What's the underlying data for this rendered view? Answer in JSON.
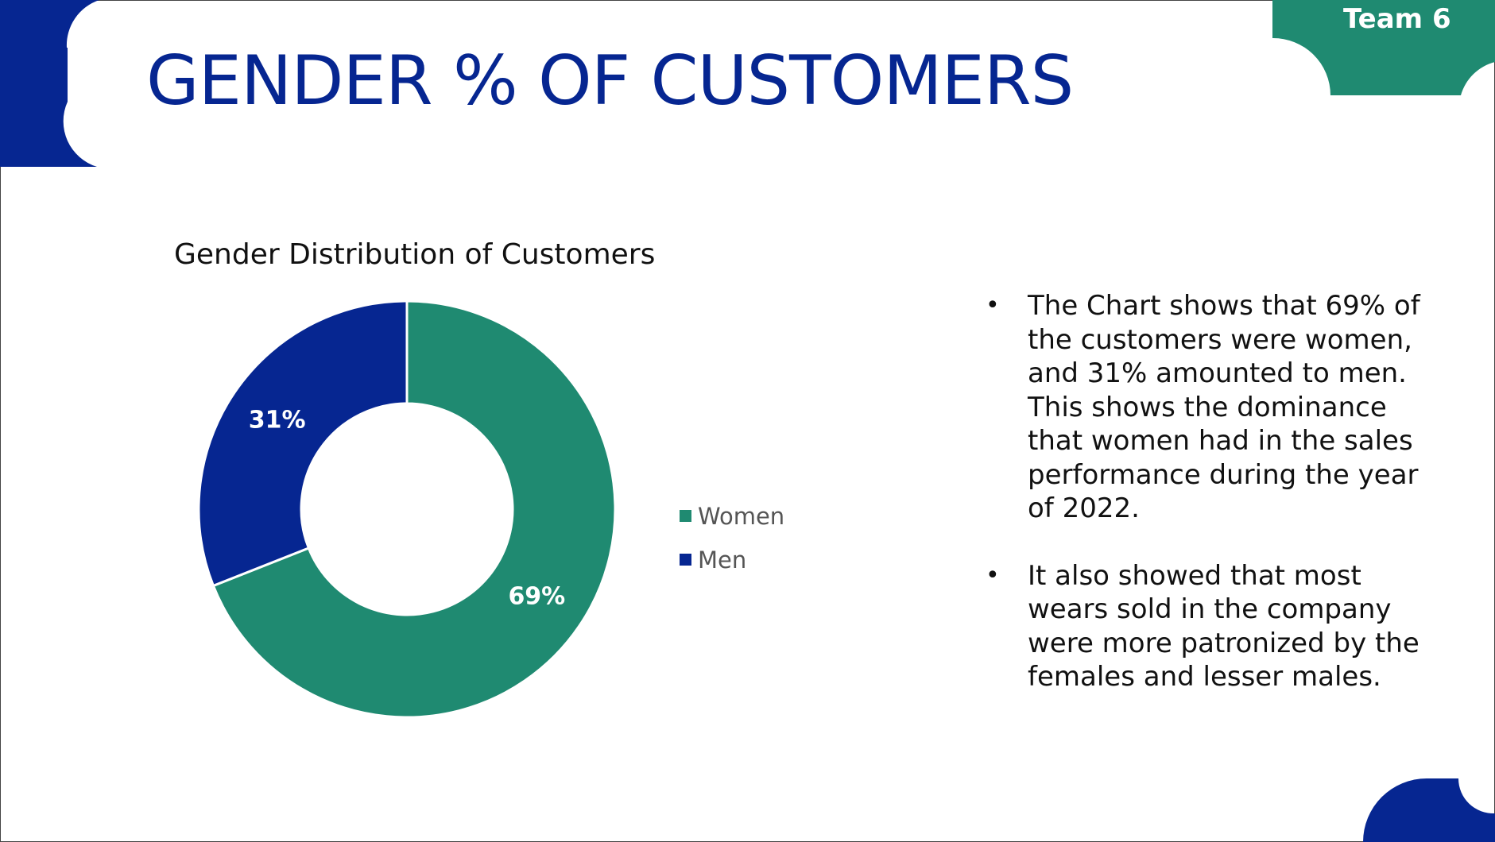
{
  "badge": {
    "label": "Team 6"
  },
  "slide": {
    "title": "GENDER % OF CUSTOMERS"
  },
  "colors": {
    "brand_blue": "#062691",
    "brand_green": "#1f8a71"
  },
  "chart_data": {
    "type": "pie",
    "style": "donut",
    "title": "Gender Distribution of Customers",
    "categories": [
      "Women",
      "Men"
    ],
    "values": [
      69,
      31
    ],
    "labels": [
      "69%",
      "31%"
    ],
    "colors": [
      "#1f8a71",
      "#062691"
    ],
    "legend_position": "right"
  },
  "notes": {
    "bullets": [
      "The Chart shows that 69% of the customers were women, and 31% amounted to men. This shows the dominance that women had in the sales performance during the year of 2022.",
      "It also showed that most wears sold in the company were more patronized by the females and lesser males."
    ]
  }
}
